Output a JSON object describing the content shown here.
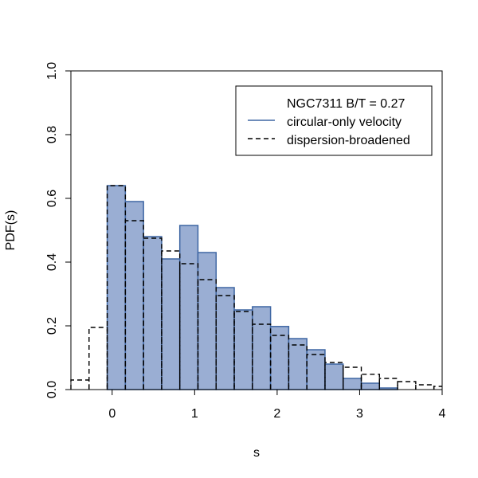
{
  "chart_data": {
    "type": "bar",
    "xlabel": "s",
    "ylabel": "PDF(s)",
    "xlim": [
      -0.5,
      4
    ],
    "ylim": [
      0,
      1
    ],
    "xticks": [
      "0",
      "1",
      "2",
      "3",
      "4"
    ],
    "yticks": [
      "0.0",
      "0.2",
      "0.4",
      "0.6",
      "0.8",
      "1.0"
    ],
    "grid": false,
    "legend_position": "top-right",
    "legend_title": "NGC7311 B/T = 0.27",
    "bin_edges": [
      -0.5,
      -0.28,
      -0.06,
      0.16,
      0.38,
      0.6,
      0.82,
      1.04,
      1.26,
      1.48,
      1.7,
      1.92,
      2.14,
      2.36,
      2.58,
      2.8,
      3.02,
      3.24,
      3.46,
      3.68,
      3.9,
      4.12
    ],
    "series": [
      {
        "name": "circular-only velocity",
        "style": "filled-histogram",
        "color": "#9aaed3",
        "edge_color": "#3e66a3",
        "values": [
          0,
          0,
          0.64,
          0.59,
          0.48,
          0.41,
          0.515,
          0.43,
          0.32,
          0.25,
          0.26,
          0.198,
          0.16,
          0.125,
          0.08,
          0.035,
          0.02,
          0.005,
          0,
          0,
          0
        ]
      },
      {
        "name": "dispersion-broadened",
        "style": "dashed-step",
        "color": "#000000",
        "values": [
          0.03,
          0.195,
          0.64,
          0.53,
          0.475,
          0.435,
          0.395,
          0.345,
          0.295,
          0.245,
          0.205,
          0.17,
          0.14,
          0.11,
          0.085,
          0.07,
          0.048,
          0.035,
          0.025,
          0.015,
          0.01
        ]
      }
    ]
  }
}
